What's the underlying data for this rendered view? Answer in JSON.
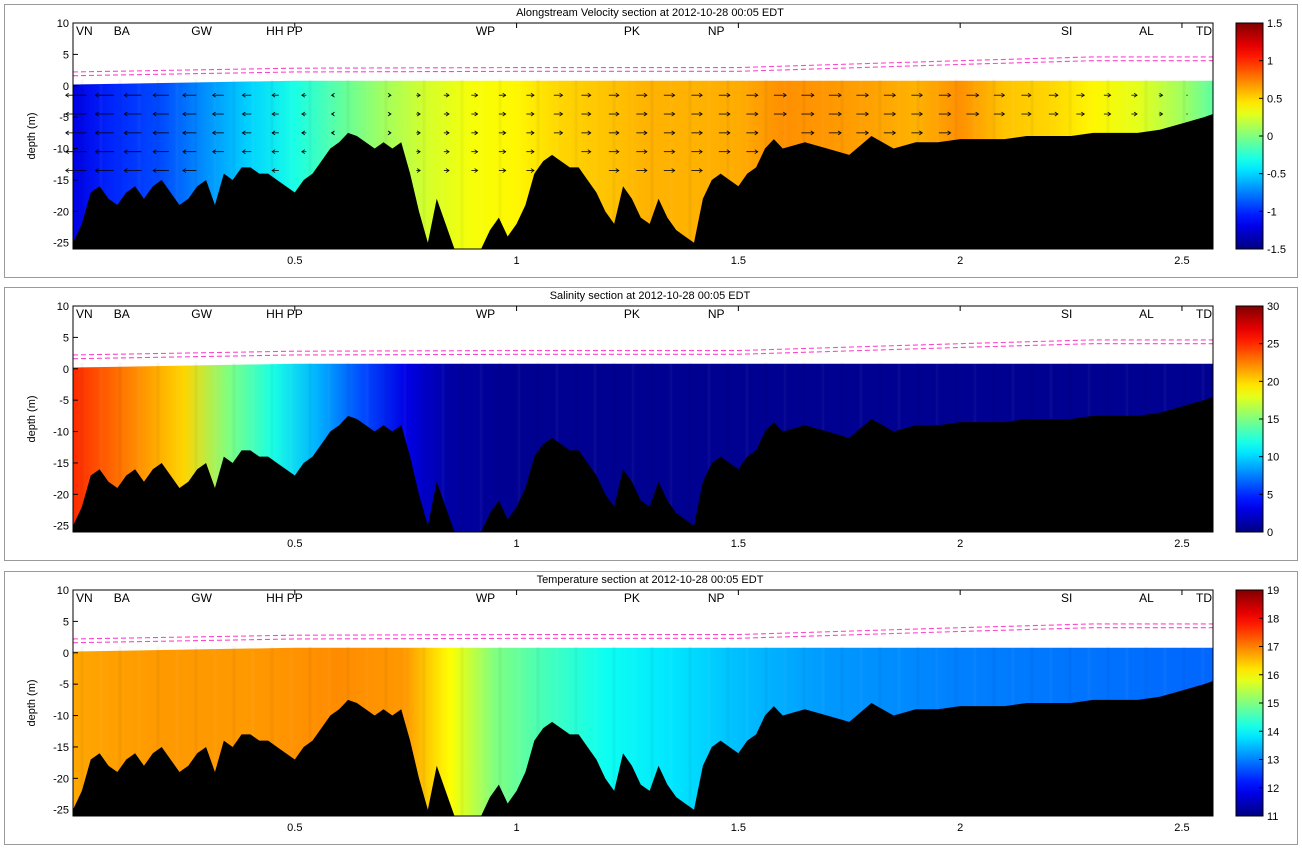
{
  "chart_data": [
    {
      "type": "heatmap",
      "title": "Alongstream Velocity section at 2012-10-28 00:05 EDT",
      "ylabel": "depth (m)",
      "xlim": [
        0.0,
        2.57
      ],
      "ylim": [
        -26,
        10
      ],
      "xticks": [
        0.5,
        1,
        1.5,
        2,
        2.5
      ],
      "xtick_labels": [
        "0.5",
        "1",
        "1.5",
        "2",
        "2.5"
      ],
      "yticks": [
        10,
        5,
        0,
        -5,
        -10,
        -15,
        -20,
        -25
      ],
      "ytick_labels": [
        "10",
        "5",
        "0",
        "-5",
        "-10",
        "-15",
        "-20",
        "-25"
      ],
      "colorbar": {
        "min": -1.5,
        "max": 1.5,
        "ticks": [
          1.5,
          1,
          0.5,
          0,
          -0.5,
          -1,
          -1.5
        ],
        "tick_labels": [
          "1.5",
          "1",
          "0.5",
          "0",
          "-0.5",
          "-1",
          "-1.5"
        ]
      },
      "field_profile": {
        "x": [
          0,
          0.1,
          0.2,
          0.3,
          0.4,
          0.5,
          0.6,
          0.7,
          0.8,
          0.9,
          1.0,
          1.1,
          1.2,
          1.3,
          1.4,
          1.5,
          1.6,
          1.7,
          1.8,
          1.9,
          2.0,
          2.1,
          2.2,
          2.3,
          2.4,
          2.5,
          2.57
        ],
        "value": [
          -1.2,
          -1.0,
          -0.9,
          -0.7,
          -0.5,
          -0.3,
          -0.1,
          0.1,
          0.25,
          0.35,
          0.4,
          0.5,
          0.55,
          0.6,
          0.6,
          0.62,
          0.7,
          0.68,
          0.65,
          0.6,
          0.7,
          0.55,
          0.5,
          0.4,
          0.3,
          0.1,
          -0.1
        ]
      },
      "arrows": true
    },
    {
      "type": "heatmap",
      "title": "Salinity section at 2012-10-28 00:05 EDT",
      "ylabel": "depth (m)",
      "xlim": [
        0.0,
        2.57
      ],
      "ylim": [
        -26,
        10
      ],
      "xticks": [
        0.5,
        1,
        1.5,
        2,
        2.5
      ],
      "xtick_labels": [
        "0.5",
        "1",
        "1.5",
        "2",
        "2.5"
      ],
      "yticks": [
        10,
        5,
        0,
        -5,
        -10,
        -15,
        -20,
        -25
      ],
      "ytick_labels": [
        "10",
        "5",
        "0",
        "-5",
        "-10",
        "-15",
        "-20",
        "-25"
      ],
      "colorbar": {
        "min": 0,
        "max": 30,
        "ticks": [
          30,
          25,
          20,
          15,
          10,
          5,
          0
        ],
        "tick_labels": [
          "30",
          "25",
          "20",
          "15",
          "10",
          "5",
          "0"
        ]
      },
      "field_profile": {
        "x": [
          0,
          0.05,
          0.15,
          0.25,
          0.35,
          0.45,
          0.55,
          0.65,
          0.75,
          0.85,
          1.0,
          1.5,
          2.0,
          2.57
        ],
        "value": [
          25,
          24,
          22,
          20,
          15,
          12,
          9,
          6,
          3,
          1,
          0.5,
          0.5,
          0.5,
          0.5
        ]
      },
      "arrows": false
    },
    {
      "type": "heatmap",
      "title": "Temperature section at 2012-10-28 00:05 EDT",
      "ylabel": "depth (m)",
      "xlim": [
        0.0,
        2.57
      ],
      "ylim": [
        -26,
        10
      ],
      "xticks": [
        0.5,
        1,
        1.5,
        2,
        2.5
      ],
      "xtick_labels": [
        "0.5",
        "1",
        "1.5",
        "2",
        "2.5"
      ],
      "yticks": [
        10,
        5,
        0,
        -5,
        -10,
        -15,
        -20,
        -25
      ],
      "ytick_labels": [
        "10",
        "5",
        "0",
        "-5",
        "-10",
        "-15",
        "-20",
        "-25"
      ],
      "colorbar": {
        "min": 11,
        "max": 19,
        "ticks": [
          19,
          18,
          17,
          16,
          15,
          14,
          13,
          12,
          11
        ],
        "tick_labels": [
          "19",
          "18",
          "17",
          "16",
          "15",
          "14",
          "13",
          "12",
          "11"
        ]
      },
      "field_profile": {
        "x": [
          0,
          0.2,
          0.4,
          0.6,
          0.75,
          0.85,
          0.95,
          1.05,
          1.2,
          1.35,
          1.5,
          1.7,
          2.0,
          2.3,
          2.57
        ],
        "value": [
          16.7,
          16.8,
          16.8,
          16.9,
          16.8,
          16.0,
          15.0,
          14.6,
          14.1,
          13.8,
          13.5,
          13.2,
          13.0,
          12.9,
          12.8
        ]
      },
      "arrows": false
    }
  ],
  "sites": [
    {
      "label": "VN",
      "x": 0.0
    },
    {
      "label": "BA",
      "x": 0.11
    },
    {
      "label": "GW",
      "x": 0.29
    },
    {
      "label": "HH",
      "x": 0.455
    },
    {
      "label": "PP",
      "x": 0.5
    },
    {
      "label": "WP",
      "x": 0.93
    },
    {
      "label": "PK",
      "x": 1.26
    },
    {
      "label": "NP",
      "x": 1.45
    },
    {
      "label": "SI",
      "x": 2.24
    },
    {
      "label": "AL",
      "x": 2.42
    },
    {
      "label": "TD",
      "x": 2.57
    }
  ],
  "bathymetry": {
    "x": [
      0,
      0.02,
      0.04,
      0.06,
      0.08,
      0.1,
      0.12,
      0.14,
      0.16,
      0.18,
      0.2,
      0.22,
      0.24,
      0.26,
      0.28,
      0.3,
      0.32,
      0.34,
      0.36,
      0.38,
      0.4,
      0.42,
      0.44,
      0.46,
      0.48,
      0.5,
      0.52,
      0.54,
      0.56,
      0.58,
      0.6,
      0.62,
      0.64,
      0.66,
      0.68,
      0.7,
      0.72,
      0.74,
      0.76,
      0.78,
      0.8,
      0.82,
      0.84,
      0.86,
      0.88,
      0.9,
      0.92,
      0.94,
      0.96,
      0.98,
      1.0,
      1.02,
      1.04,
      1.06,
      1.08,
      1.1,
      1.12,
      1.14,
      1.16,
      1.18,
      1.2,
      1.22,
      1.24,
      1.26,
      1.28,
      1.3,
      1.32,
      1.34,
      1.36,
      1.38,
      1.4,
      1.42,
      1.44,
      1.46,
      1.48,
      1.5,
      1.52,
      1.54,
      1.56,
      1.58,
      1.6,
      1.65,
      1.7,
      1.75,
      1.8,
      1.85,
      1.9,
      1.95,
      2.0,
      2.05,
      2.1,
      2.15,
      2.2,
      2.25,
      2.3,
      2.35,
      2.4,
      2.45,
      2.5,
      2.55,
      2.57
    ],
    "depth": [
      -25,
      -22,
      -17,
      -16,
      -18,
      -19,
      -17,
      -16,
      -18,
      -16,
      -15,
      -17,
      -19,
      -18,
      -16,
      -15,
      -19,
      -14,
      -15,
      -13,
      -13,
      -14,
      -14,
      -15,
      -16,
      -17,
      -15,
      -14,
      -12,
      -10,
      -9,
      -7.5,
      -8,
      -9,
      -10,
      -9,
      -10,
      -9,
      -14,
      -20,
      -25,
      -18,
      -22,
      -26,
      -26,
      -26,
      -26,
      -23,
      -21,
      -24,
      -22,
      -19,
      -14,
      -12,
      -11,
      -12,
      -13,
      -13,
      -15,
      -17,
      -20,
      -22,
      -16,
      -18,
      -21,
      -22,
      -18,
      -21,
      -23,
      -24,
      -25,
      -18,
      -15,
      -14,
      -15,
      -16,
      -14,
      -13,
      -10,
      -8.5,
      -10,
      -9,
      -10,
      -11,
      -8,
      -10,
      -9,
      -9,
      -8.5,
      -8.5,
      -8.5,
      -8,
      -8,
      -8,
      -7.5,
      -7.5,
      -7.5,
      -7,
      -6,
      -5,
      -4.5
    ],
    "fill": "#000000"
  },
  "water_surface": {
    "x": [
      0,
      0.5,
      1.0,
      1.5,
      2.0,
      2.3,
      2.57
    ],
    "level": [
      2.2,
      2.8,
      2.9,
      2.9,
      4.0,
      4.6,
      4.6
    ],
    "color": "#ff44cc"
  }
}
